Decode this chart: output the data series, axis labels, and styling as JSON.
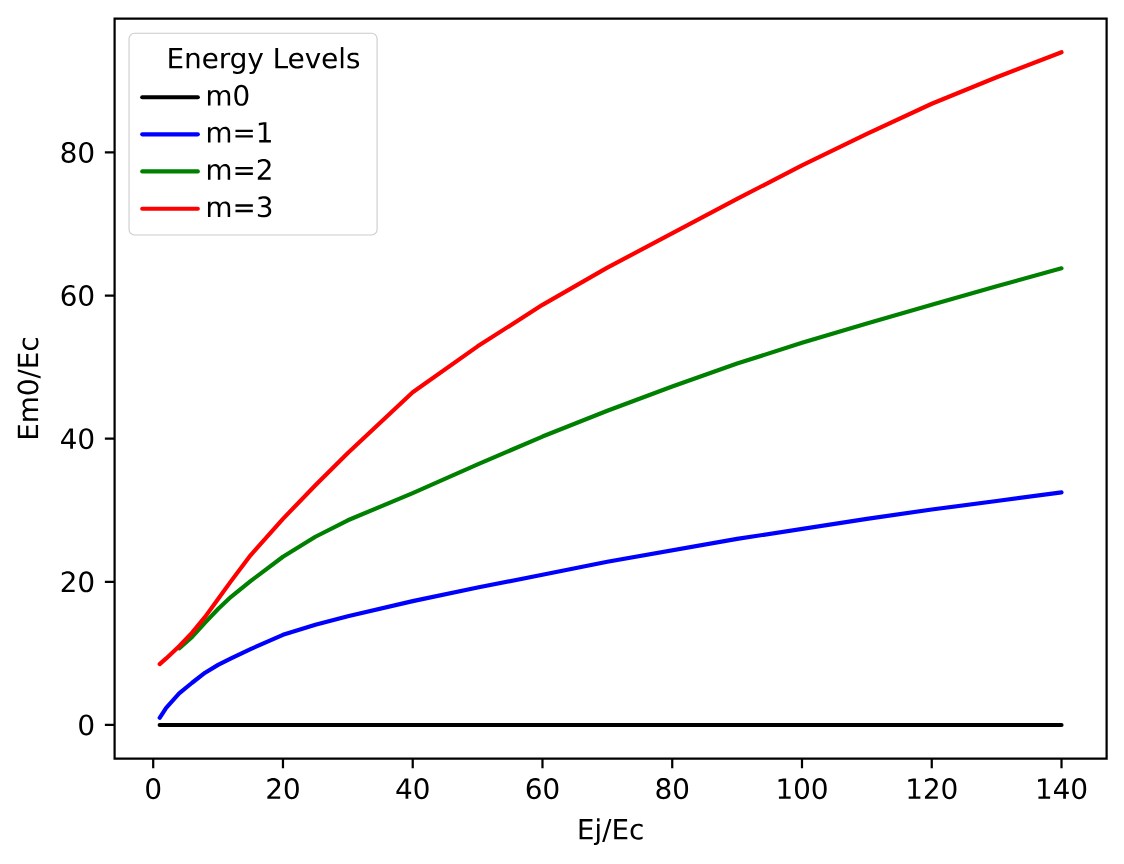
{
  "chart_data": {
    "type": "line",
    "xlabel": "Ej/Ec",
    "ylabel": "Em0/Ec",
    "legend_title": "Energy Levels",
    "legend": "top left",
    "x": [
      1,
      2,
      4,
      6,
      8,
      10,
      12,
      15,
      20,
      25,
      30,
      40,
      50,
      60,
      70,
      80,
      90,
      100,
      110,
      120,
      130,
      140
    ],
    "series": [
      {
        "name": "m0",
        "color": "#000000",
        "values": [
          0,
          0,
          0,
          0,
          0,
          0,
          0,
          0,
          0,
          0,
          0,
          0,
          0,
          0,
          0,
          0,
          0,
          0,
          0,
          0,
          0,
          0
        ]
      },
      {
        "name": "m=1",
        "color": "#0000ff",
        "values": [
          1.0,
          2.4,
          4.4,
          5.9,
          7.3,
          8.4,
          9.3,
          10.6,
          12.6,
          14.0,
          15.2,
          17.3,
          19.2,
          21.0,
          22.8,
          24.4,
          26.0,
          27.4,
          28.8,
          30.1,
          31.3,
          32.5
        ]
      },
      {
        "name": "m=2",
        "color": "#008000",
        "values": [
          null,
          null,
          10.7,
          12.3,
          14.3,
          16.2,
          17.9,
          20.1,
          23.5,
          26.3,
          28.6,
          32.4,
          36.4,
          40.3,
          43.9,
          47.3,
          50.5,
          53.4,
          56.1,
          58.7,
          61.3,
          63.8
        ]
      },
      {
        "name": "m=3",
        "color": "#ff0000",
        "values": [
          8.5,
          9.3,
          11.0,
          12.9,
          15.1,
          17.6,
          20.1,
          23.7,
          28.8,
          33.5,
          38.0,
          46.5,
          52.9,
          58.7,
          63.9,
          68.7,
          73.5,
          78.2,
          82.6,
          86.8,
          90.5,
          94.0
        ]
      }
    ],
    "xlim": [
      -5.95,
      146.95
    ],
    "ylim": [
      -4.7,
      98.7
    ],
    "xticks": [
      0,
      20,
      40,
      60,
      80,
      100,
      120,
      140
    ],
    "yticks": [
      0,
      20,
      40,
      60,
      80
    ]
  }
}
